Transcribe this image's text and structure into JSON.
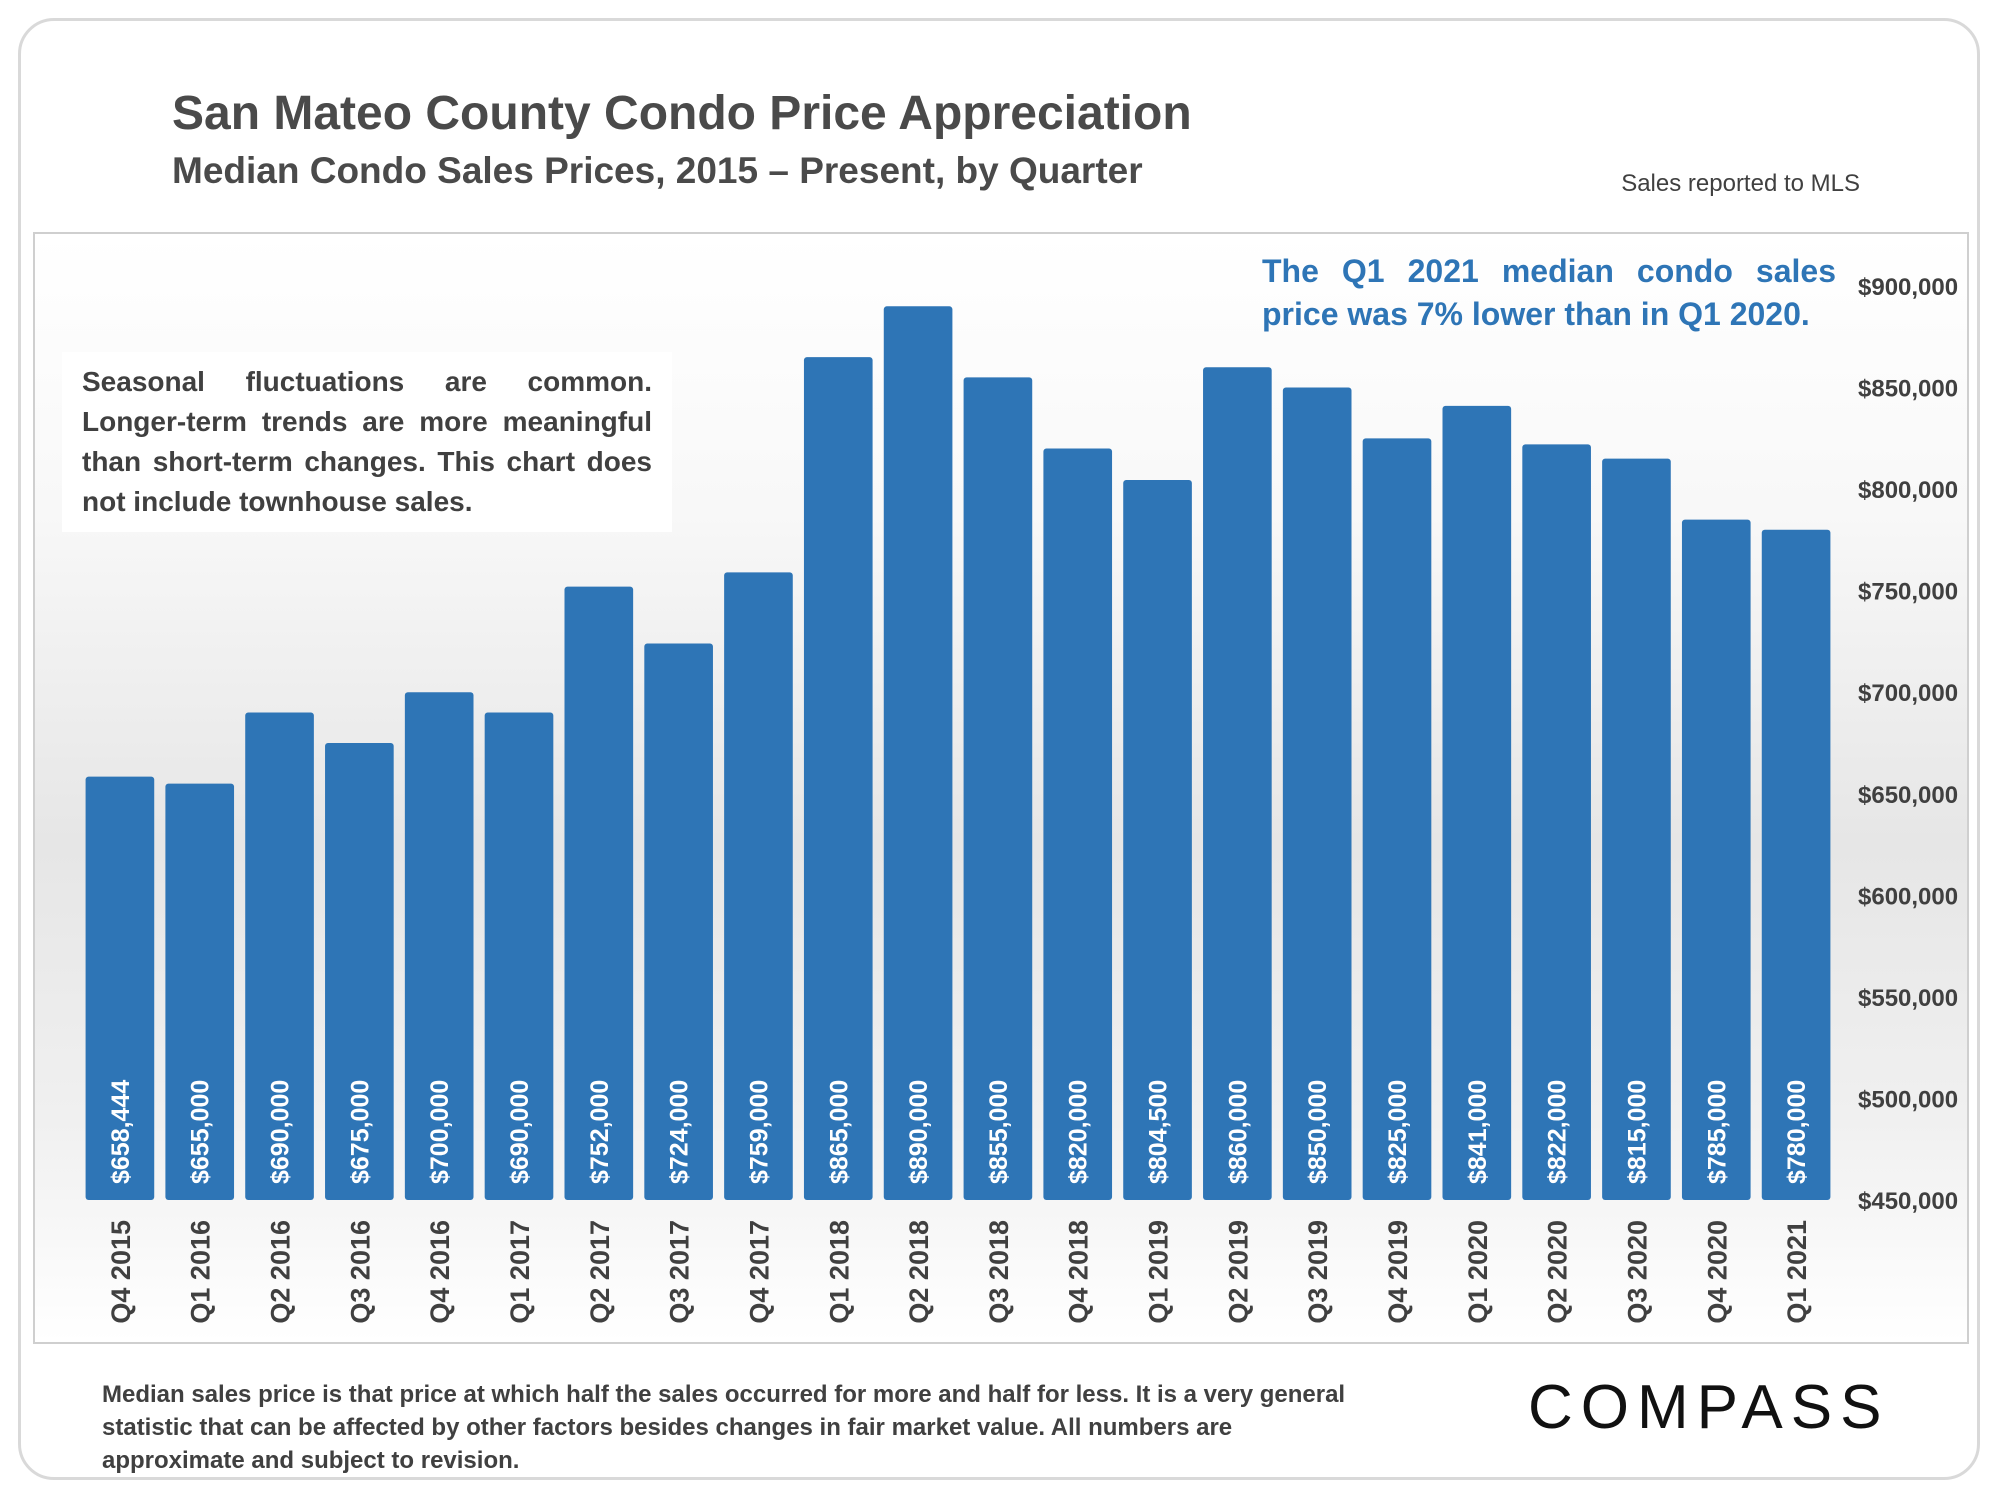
{
  "header": {
    "title": "San Mateo County Condo Price Appreciation",
    "subtitle": "Median Condo Sales Prices, 2015 – Present, by Quarter",
    "source": "Sales reported to MLS"
  },
  "notes": {
    "left": "Seasonal fluctuations are common. Longer-term trends are more meaningful than short-term changes. This chart does not include townhouse sales.",
    "right": "The Q1 2021 median condo sales price was 7% lower than in Q1 2020."
  },
  "footer": {
    "footnote": "Median sales price is that price at which half the sales occurred for more and half for less. It is a very general statistic that can be affected by other factors besides changes in fair market value. All numbers are approximate and subject to revision.",
    "logo": "COMPASS"
  },
  "colors": {
    "bar": "#2e75b6",
    "text": "#404040",
    "accent": "#2e75b6"
  },
  "chart_data": {
    "type": "bar",
    "title": "San Mateo County Condo Price Appreciation",
    "subtitle": "Median Condo Sales Prices, 2015 – Present, by Quarter",
    "categories": [
      "Q4 2015",
      "Q1 2016",
      "Q2 2016",
      "Q3 2016",
      "Q4 2016",
      "Q1 2017",
      "Q2 2017",
      "Q3 2017",
      "Q4 2017",
      "Q1 2018",
      "Q2 2018",
      "Q3 2018",
      "Q4 2018",
      "Q1 2019",
      "Q2 2019",
      "Q3 2019",
      "Q4 2019",
      "Q1 2020",
      "Q2 2020",
      "Q3 2020",
      "Q4 2020",
      "Q1 2021"
    ],
    "values": [
      658444,
      655000,
      690000,
      675000,
      700000,
      690000,
      752000,
      724000,
      759000,
      865000,
      890000,
      855000,
      820000,
      804500,
      860000,
      850000,
      825000,
      841000,
      822000,
      815000,
      785000,
      780000
    ],
    "data_labels": [
      "$658,444",
      "$655,000",
      "$690,000",
      "$675,000",
      "$700,000",
      "$690,000",
      "$752,000",
      "$724,000",
      "$759,000",
      "$865,000",
      "$890,000",
      "$855,000",
      "$820,000",
      "$804,500",
      "$860,000",
      "$850,000",
      "$825,000",
      "$841,000",
      "$822,000",
      "$815,000",
      "$785,000",
      "$780,000"
    ],
    "ylim": [
      450000,
      900000
    ],
    "yticks": [
      450000,
      500000,
      550000,
      600000,
      650000,
      700000,
      750000,
      800000,
      850000,
      900000
    ],
    "ytick_labels": [
      "$450,000",
      "$500,000",
      "$550,000",
      "$600,000",
      "$650,000",
      "$700,000",
      "$750,000",
      "$800,000",
      "$850,000",
      "$900,000"
    ],
    "y_axis_position": "right",
    "grid": false,
    "legend": "none"
  }
}
